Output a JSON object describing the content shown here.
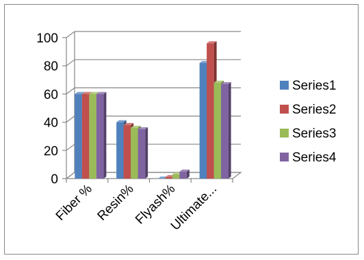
{
  "chart_data": {
    "type": "bar",
    "style": "3d-clustered-column",
    "title": "",
    "xlabel": "",
    "ylabel": "",
    "categories": [
      "Fiber %",
      "Resin%",
      "Flyash%",
      "Ultimate..."
    ],
    "series": [
      {
        "name": "Series1",
        "color": "#4F81BD",
        "values": [
          60,
          40,
          0,
          82
        ]
      },
      {
        "name": "Series2",
        "color": "#C0504D",
        "values": [
          60,
          38,
          1,
          96
        ]
      },
      {
        "name": "Series3",
        "color": "#9BBB59",
        "values": [
          60,
          36,
          3,
          68
        ]
      },
      {
        "name": "Series4",
        "color": "#8064A2",
        "values": [
          60,
          35,
          5,
          67
        ]
      }
    ],
    "ylim": [
      0,
      100
    ],
    "yticks": [
      "0",
      "20",
      "40",
      "60",
      "80",
      "100"
    ],
    "grid": true,
    "legend_position": "right"
  }
}
